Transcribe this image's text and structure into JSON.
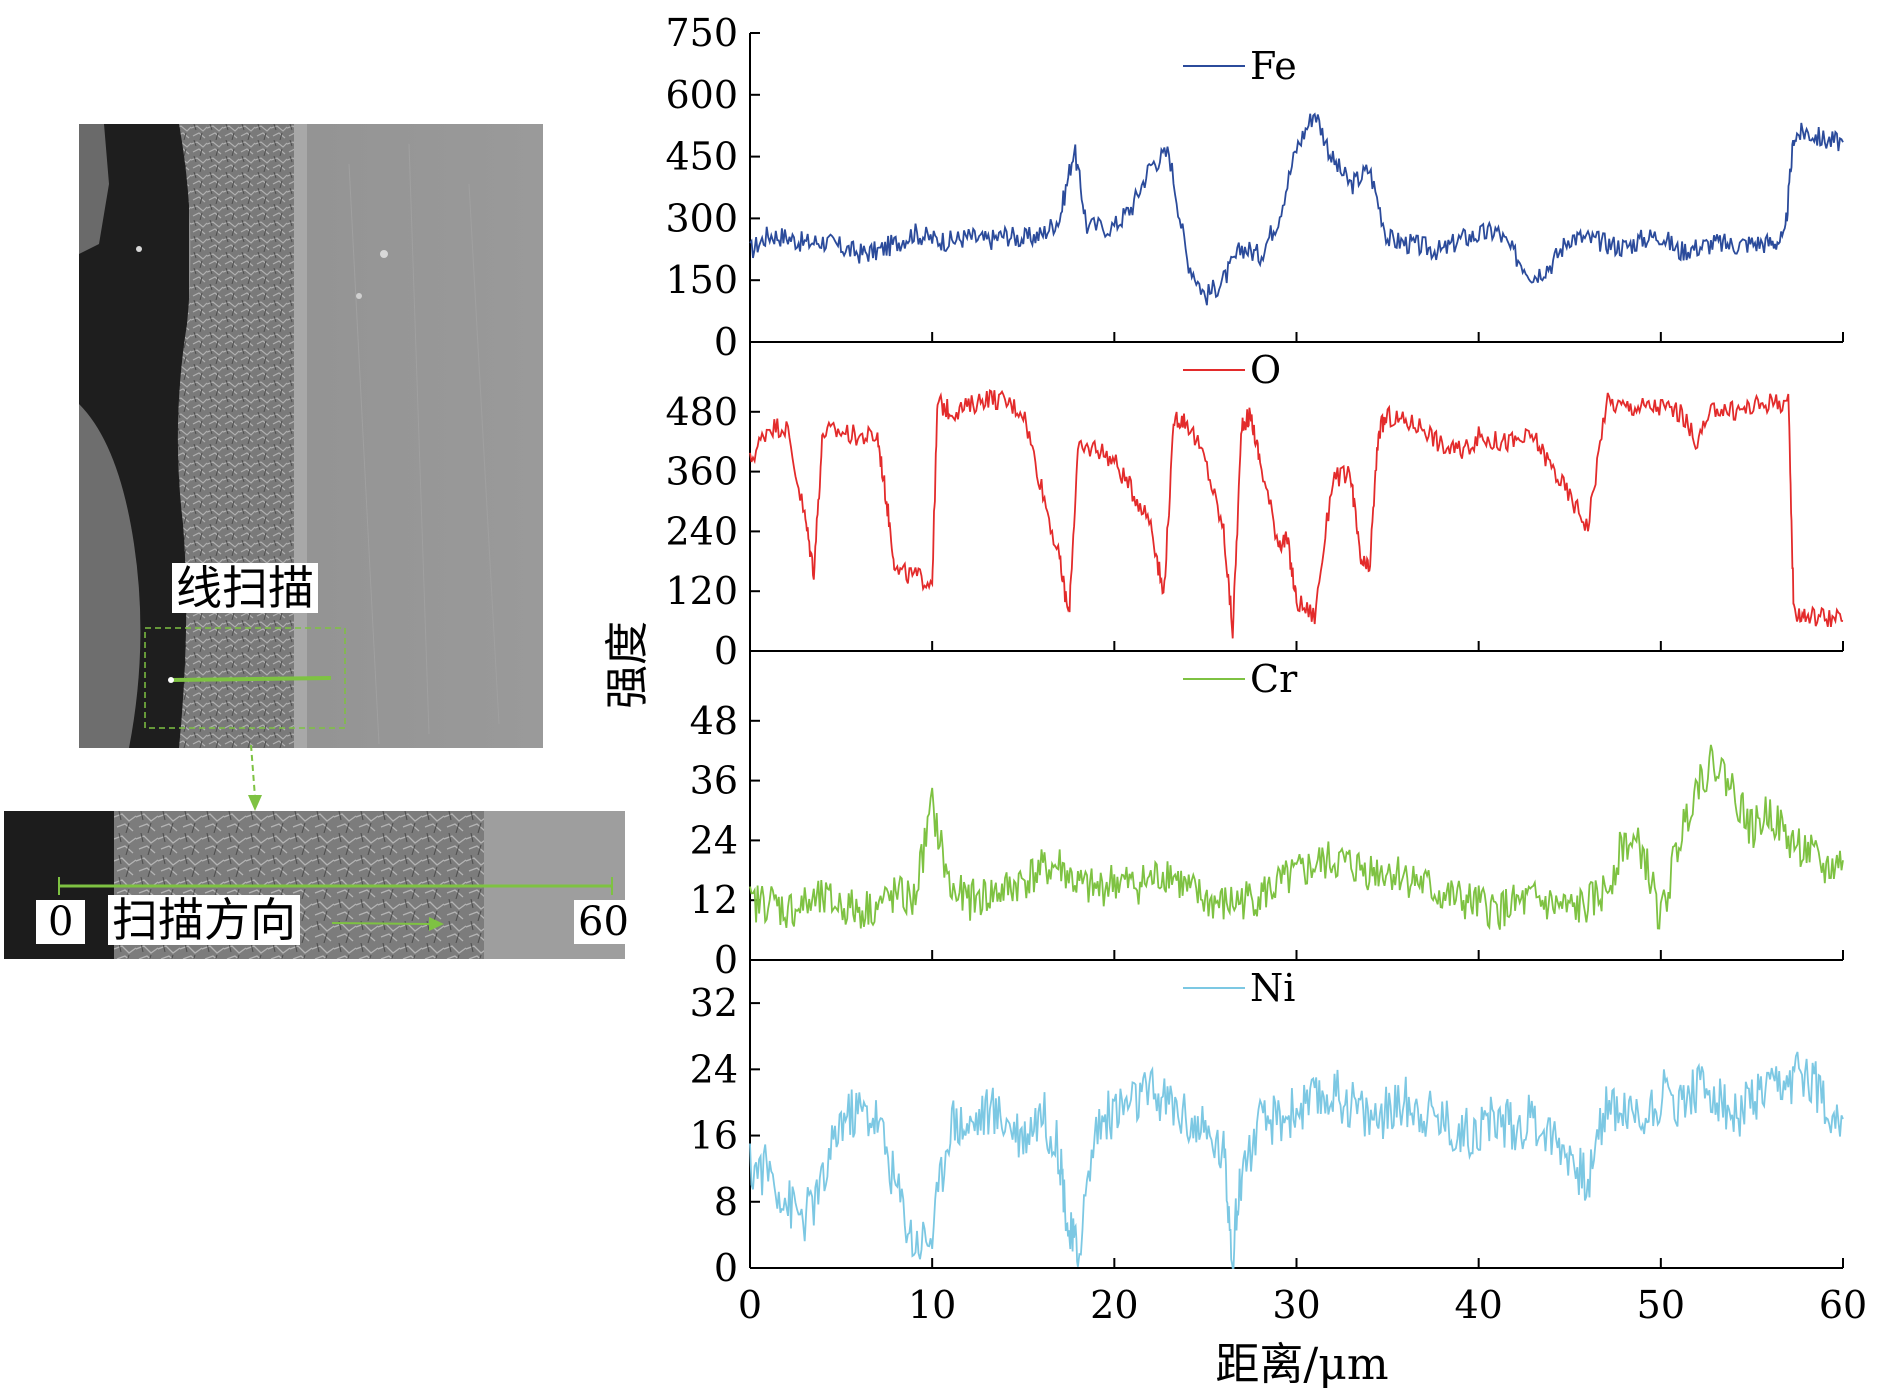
{
  "sem": {
    "line_scan_label": "线扫描",
    "scan_direction_label": "扫描方向",
    "start_label": "0",
    "end_label": "60",
    "overlay_color": "#7ec242"
  },
  "chart_data": {
    "type": "line",
    "xlabel": "距离/μm",
    "ylabel": "强度",
    "xlim": [
      0,
      60
    ],
    "x_ticks": [
      "0",
      "10",
      "20",
      "30",
      "40",
      "50",
      "60"
    ],
    "panels": [
      {
        "name": "Fe",
        "color": "#2b4b9b",
        "ylim": [
          0,
          750
        ],
        "y_ticks": [
          "0",
          "150",
          "300",
          "450",
          "600",
          "750"
        ],
        "x": [
          0,
          1,
          2,
          3,
          4,
          5,
          6,
          7,
          8,
          9,
          10,
          11,
          12,
          13,
          14,
          15,
          16,
          17,
          17.8,
          18.5,
          20,
          21,
          22,
          23,
          24,
          25,
          26,
          27,
          28,
          29,
          30,
          31,
          32,
          33,
          34,
          35,
          36,
          37,
          38,
          39,
          40,
          41,
          42,
          43,
          44,
          45,
          46,
          47,
          48,
          49,
          50,
          51,
          52,
          53,
          54,
          55,
          56,
          56.8,
          57.3,
          58,
          59,
          60
        ],
        "values": [
          220,
          260,
          255,
          240,
          245,
          230,
          215,
          220,
          240,
          265,
          250,
          245,
          255,
          245,
          260,
          250,
          260,
          300,
          470,
          280,
          280,
          330,
          430,
          460,
          200,
          110,
          150,
          230,
          210,
          300,
          470,
          560,
          440,
          380,
          420,
          250,
          240,
          230,
          220,
          250,
          260,
          270,
          210,
          160,
          190,
          255,
          250,
          240,
          230,
          250,
          260,
          220,
          230,
          240,
          235,
          240,
          240,
          250,
          500,
          510,
          490,
          485
        ]
      },
      {
        "name": "O",
        "color": "#e32b2b",
        "ylim": [
          0,
          600
        ],
        "y_ticks": [
          "0",
          "120",
          "240",
          "360",
          "480"
        ],
        "x": [
          0,
          1,
          2,
          3,
          3.5,
          4,
          5,
          6,
          7,
          7.5,
          8,
          9,
          10,
          10.3,
          11,
          12,
          13,
          14,
          15,
          16,
          17,
          17.5,
          18,
          19,
          20,
          21,
          22,
          22.7,
          23.3,
          24,
          25,
          26,
          26.5,
          27,
          27.5,
          28,
          29,
          29.5,
          30,
          31,
          32,
          33,
          33.5,
          34,
          34.5,
          35,
          36,
          37,
          38,
          39,
          40,
          41,
          42,
          43,
          44,
          45,
          46,
          47,
          48,
          49,
          50,
          51,
          52,
          53,
          54,
          55,
          56,
          57,
          57.3,
          58,
          59,
          60
        ],
        "values": [
          380,
          450,
          450,
          270,
          160,
          440,
          440,
          430,
          430,
          300,
          160,
          150,
          140,
          500,
          480,
          490,
          510,
          500,
          480,
          330,
          180,
          70,
          400,
          410,
          380,
          320,
          260,
          110,
          470,
          460,
          380,
          240,
          40,
          460,
          470,
          380,
          220,
          220,
          100,
          70,
          350,
          350,
          180,
          160,
          440,
          470,
          460,
          450,
          410,
          400,
          430,
          420,
          420,
          430,
          370,
          310,
          250,
          500,
          490,
          490,
          490,
          480,
          420,
          490,
          480,
          490,
          500,
          500,
          80,
          70,
          70,
          60
        ]
      },
      {
        "name": "Cr",
        "color": "#7ec242",
        "ylim": [
          0,
          60
        ],
        "y_ticks": [
          "0",
          "12",
          "24",
          "36",
          "48"
        ],
        "x": [
          0,
          1,
          2,
          3,
          4,
          5,
          6,
          7,
          8,
          9,
          10,
          11,
          12,
          13,
          14,
          15,
          16,
          17,
          18,
          19,
          20,
          21,
          22,
          23,
          24,
          25,
          26,
          27,
          28,
          29,
          30,
          31,
          32,
          33,
          34,
          35,
          36,
          37,
          38,
          39,
          40,
          41,
          42,
          43,
          44,
          45,
          46,
          47,
          48,
          49,
          50,
          51,
          52,
          53,
          54,
          55,
          56,
          57,
          58,
          59,
          60
        ],
        "values": [
          11,
          12,
          10,
          11,
          12,
          11,
          10,
          11,
          13,
          12,
          31,
          14,
          12,
          13,
          14,
          16,
          18,
          19,
          15,
          14,
          16,
          15,
          16,
          18,
          14,
          12,
          11,
          12,
          13,
          15,
          17,
          19,
          20,
          19,
          18,
          18,
          17,
          15,
          13,
          12,
          11,
          10,
          11,
          12,
          11,
          10,
          11,
          14,
          24,
          22,
          8,
          24,
          36,
          40,
          34,
          26,
          30,
          24,
          22,
          18,
          20
        ]
      },
      {
        "name": "Ni",
        "color": "#7cc8e3",
        "ylim": [
          0,
          36
        ],
        "y_ticks": [
          "0",
          "8",
          "16",
          "24",
          "32"
        ],
        "x": [
          0,
          1,
          2,
          3,
          4,
          5,
          6,
          7,
          8,
          9,
          10,
          11,
          12,
          13,
          14,
          15,
          16,
          17,
          17.5,
          18,
          19,
          20,
          21,
          22,
          23,
          24,
          25,
          26,
          26.5,
          27,
          28,
          29,
          30,
          31,
          32,
          33,
          34,
          35,
          36,
          37,
          38,
          39,
          40,
          41,
          42,
          43,
          44,
          45,
          46,
          47,
          48,
          49,
          50,
          51,
          52,
          53,
          54,
          55,
          56,
          57,
          58,
          59,
          60
        ],
        "values": [
          12,
          12,
          8,
          6,
          10,
          18,
          19,
          18,
          10,
          3,
          4,
          18,
          17,
          19,
          18,
          16,
          19,
          14,
          4,
          2,
          17,
          19,
          20,
          21,
          20,
          18,
          16,
          14,
          2,
          12,
          17,
          18,
          19,
          20,
          21,
          20,
          18,
          19,
          20,
          19,
          18,
          16,
          17,
          18,
          17,
          18,
          16,
          14,
          10,
          20,
          19,
          18,
          21,
          20,
          22,
          21,
          18,
          20,
          21,
          22,
          24,
          20,
          18
        ]
      }
    ]
  }
}
